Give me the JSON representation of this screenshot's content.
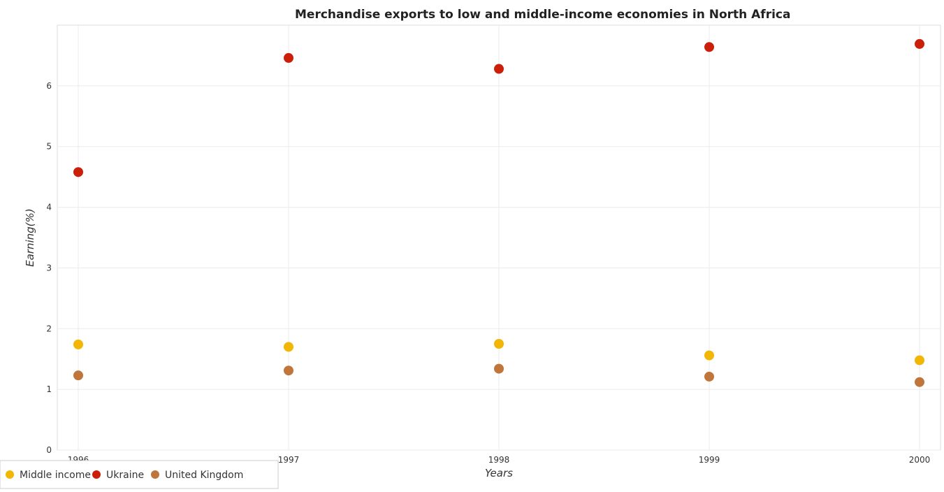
{
  "chart_data": {
    "type": "scatter",
    "title": "Merchandise exports to low and middle-income economies in North Africa",
    "xlabel": "Years",
    "ylabel": "Earning(%)",
    "categories": [
      "1996",
      "1997",
      "1998",
      "1999",
      "2000"
    ],
    "yticks": [
      "0",
      "1",
      "2",
      "3",
      "4",
      "5",
      "6"
    ],
    "ylim": [
      0,
      7
    ],
    "grid": true,
    "legend_position": "bottom-left",
    "series": [
      {
        "name": "Middle income",
        "color": "#f2b705",
        "values": [
          1.74,
          1.7,
          1.75,
          1.56,
          1.48
        ]
      },
      {
        "name": "Ukraine",
        "color": "#cc1f0a",
        "values": [
          4.58,
          6.46,
          6.28,
          6.64,
          6.69
        ]
      },
      {
        "name": "United Kingdom",
        "color": "#c0763a",
        "values": [
          1.23,
          1.31,
          1.34,
          1.21,
          1.12
        ]
      }
    ]
  }
}
